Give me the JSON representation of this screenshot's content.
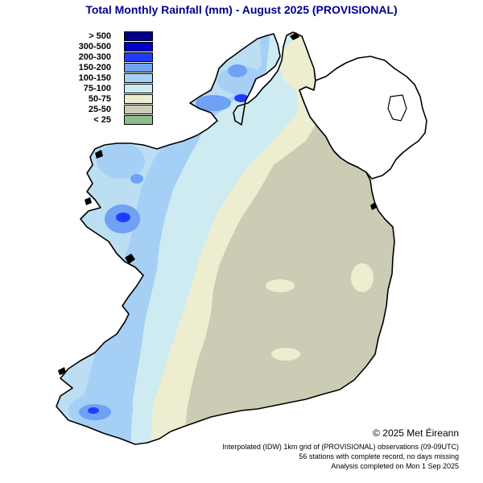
{
  "title": "Total Monthly Rainfall (mm) - August 2025  (PROVISIONAL)",
  "legend": [
    {
      "label": "> 500",
      "color": "#00008b"
    },
    {
      "label": "300-500",
      "color": "#0000cd"
    },
    {
      "label": "200-300",
      "color": "#1e3cff"
    },
    {
      "label": "150-200",
      "color": "#6fa2f5"
    },
    {
      "label": "100-150",
      "color": "#a6cff5"
    },
    {
      "label": "75-100",
      "color": "#cdebf0"
    },
    {
      "label": "50-75",
      "color": "#ededd0"
    },
    {
      "label": "25-50",
      "color": "#ccccb4"
    },
    {
      "label": "< 25",
      "color": "#8fbc8f"
    }
  ],
  "copyright": "© 2025 Met Éireann",
  "footer": {
    "line1": "Interpolated (IDW) 1km grid of  (PROVISIONAL) observations (09-09UTC)",
    "line2": "56 stations with complete record, no days missing",
    "line3": "Analysis completed on Mon 1 Sep 2025"
  }
}
